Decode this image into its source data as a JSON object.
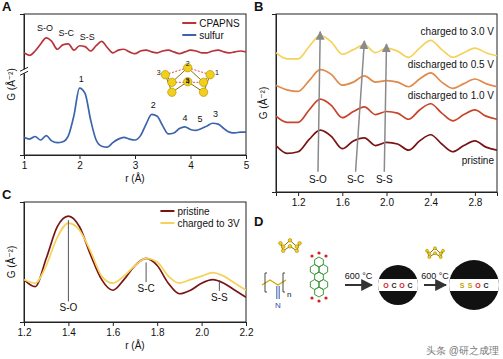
{
  "chart_data": [
    {
      "panel_label": "A",
      "type": "line",
      "xlabel": "r (Å)",
      "ylabel": "G (Å⁻²)",
      "x": [
        1.0,
        1.1,
        1.2,
        1.3,
        1.4,
        1.5,
        1.6,
        1.7,
        1.8,
        1.9,
        2.0,
        2.1,
        2.2,
        2.3,
        2.4,
        2.5,
        2.6,
        2.7,
        2.8,
        2.9,
        3.0,
        3.1,
        3.2,
        3.3,
        3.4,
        3.5,
        3.6,
        3.7,
        3.8,
        3.9,
        4.0,
        4.1,
        4.2,
        4.3,
        4.4,
        4.5,
        4.6,
        4.7,
        4.8,
        4.9,
        5.0
      ],
      "series": [
        {
          "name": "CPAPNS",
          "color": "#b8343a",
          "values": [
            9.6,
            9.3,
            9.8,
            10.6,
            11.3,
            10.9,
            10.0,
            10.5,
            10.6,
            9.9,
            10.4,
            10.3,
            9.8,
            10.4,
            10.9,
            10.2,
            9.6,
            9.9,
            10.0,
            9.7,
            9.5,
            9.8,
            9.9,
            9.7,
            9.6,
            9.8,
            9.9,
            9.7,
            9.5,
            9.7,
            9.9,
            9.8,
            9.6,
            9.6,
            9.8,
            9.9,
            9.7,
            9.6,
            9.7,
            9.8,
            9.7
          ]
        },
        {
          "name": "sulfur",
          "color": "#3b64ad",
          "values": [
            0.0,
            -0.2,
            0.1,
            -0.3,
            0.2,
            -0.4,
            -0.6,
            -0.5,
            0.2,
            2.5,
            5.6,
            5.0,
            2.0,
            -0.3,
            -1.0,
            -1.1,
            -0.6,
            -0.2,
            0.0,
            -0.2,
            -0.3,
            0.2,
            1.5,
            2.6,
            2.4,
            1.3,
            0.4,
            0.5,
            1.0,
            1.2,
            0.9,
            0.8,
            1.0,
            1.3,
            1.6,
            1.5,
            1.0,
            0.6,
            0.5,
            0.6,
            0.6
          ]
        }
      ],
      "xlim": [
        1,
        5
      ],
      "xticks": [
        1,
        2,
        3,
        4,
        5
      ],
      "ylim": [
        -2,
        14
      ],
      "yticks": [],
      "tick_labels": "x",
      "legend": "upper right",
      "annotations": [
        {
          "text": "S-O",
          "x": 1.38,
          "y": 12.1
        },
        {
          "text": "S-C",
          "x": 1.76,
          "y": 11.5
        },
        {
          "text": "S-S",
          "x": 2.14,
          "y": 11.0
        },
        {
          "text": "1",
          "x": 2.03,
          "y": 6.3
        },
        {
          "text": "2",
          "x": 3.33,
          "y": 3.3
        },
        {
          "text": "4",
          "x": 3.9,
          "y": 1.9
        },
        {
          "text": "5",
          "x": 4.17,
          "y": 1.8
        },
        {
          "text": "3",
          "x": 4.45,
          "y": 2.3
        }
      ],
      "inset_labels": [
        "1",
        "2",
        "3",
        "4",
        "5"
      ]
    },
    {
      "panel_label": "B",
      "type": "line",
      "ylabel": "G (Å⁻²)",
      "x": [
        1.0,
        1.1,
        1.2,
        1.3,
        1.4,
        1.5,
        1.6,
        1.7,
        1.8,
        1.9,
        2.0,
        2.1,
        2.2,
        2.3,
        2.4,
        2.5,
        2.6,
        2.7,
        2.8,
        2.9,
        3.0
      ],
      "series": [
        {
          "name": "pristine",
          "color": "#7a1414",
          "values": [
            1.5,
            1.0,
            1.1,
            1.9,
            2.5,
            2.1,
            1.3,
            1.8,
            2.0,
            1.5,
            1.7,
            1.6,
            1.2,
            1.8,
            2.2,
            1.6,
            1.1,
            1.5,
            1.8,
            1.4,
            1.2
          ]
        },
        {
          "name": "discharged to 1.0 V",
          "color": "#c8442a",
          "values": [
            3.4,
            3.0,
            3.0,
            3.8,
            4.5,
            4.1,
            3.3,
            3.7,
            4.0,
            3.5,
            3.7,
            3.6,
            3.2,
            3.8,
            4.2,
            3.6,
            3.1,
            3.5,
            3.8,
            3.4,
            3.2
          ]
        },
        {
          "name": "discharged to 0.5 V",
          "color": "#e08a4c",
          "values": [
            5.4,
            5.1,
            5.0,
            5.7,
            6.4,
            6.1,
            5.4,
            5.6,
            6.0,
            5.6,
            5.7,
            5.6,
            5.3,
            5.8,
            6.2,
            5.6,
            5.2,
            5.5,
            5.8,
            5.5,
            5.3
          ]
        },
        {
          "name": "charged to 3.0 V",
          "color": "#f5d35a",
          "values": [
            7.5,
            7.1,
            7.1,
            7.9,
            8.6,
            8.2,
            7.4,
            7.7,
            8.0,
            7.5,
            7.8,
            7.6,
            7.2,
            7.8,
            8.3,
            7.7,
            7.2,
            7.5,
            7.8,
            7.5,
            7.3
          ]
        }
      ],
      "xlim": [
        1.0,
        3.0
      ],
      "xticks": [
        1.2,
        1.6,
        {
          "value": 2.0,
          "label": "2.0"
        },
        2.4,
        2.8
      ],
      "ylim": [
        -1.5,
        10
      ],
      "yticks": [],
      "tick_labels": "x",
      "annotations": [
        {
          "text": "S-O",
          "x": 1.38,
          "y": -0.9
        },
        {
          "text": "S-C",
          "x": 1.72,
          "y": -0.9
        },
        {
          "text": "S-S",
          "x": 1.98,
          "y": -0.9
        }
      ]
    },
    {
      "panel_label": "C",
      "type": "line",
      "xlabel": "r (Å)",
      "ylabel": "G (Å⁻²)",
      "x": [
        1.2,
        1.25,
        1.3,
        1.35,
        1.4,
        1.45,
        1.5,
        1.55,
        1.6,
        1.65,
        1.7,
        1.75,
        1.8,
        1.85,
        1.9,
        1.95,
        2.0,
        2.05,
        2.1,
        2.15,
        2.2
      ],
      "series": [
        {
          "name": "pristine",
          "color": "#7a1414",
          "values": [
            0.9,
            0.7,
            1.5,
            2.4,
            2.7,
            2.4,
            1.6,
            0.9,
            0.6,
            0.9,
            1.3,
            1.5,
            1.3,
            0.8,
            0.5,
            0.6,
            0.8,
            0.9,
            0.8,
            0.6,
            0.4
          ]
        },
        {
          "name": "charged to 3V",
          "color": "#f5d35a",
          "values": [
            0.9,
            0.8,
            1.3,
            2.1,
            2.5,
            2.3,
            1.7,
            1.0,
            0.8,
            1.0,
            1.3,
            1.5,
            1.4,
            1.0,
            0.8,
            0.9,
            1.0,
            1.1,
            1.0,
            0.8,
            0.6
          ]
        }
      ],
      "xlim": [
        1.2,
        2.2
      ],
      "xticks": [
        1.2,
        1.4,
        1.6,
        1.8,
        {
          "value": 2.0,
          "label": "2.0"
        },
        2.2
      ],
      "ylim": [
        -0.3,
        3.1
      ],
      "yticks": [],
      "tick_labels": "x",
      "legend": "upper right",
      "annotations": [
        {
          "text": "S-O",
          "x": 1.4,
          "y": 0.0
        },
        {
          "text": "S-C",
          "x": 1.75,
          "y": 0.55
        },
        {
          "text": "S-S",
          "x": 2.08,
          "y": 0.3
        }
      ]
    }
  ],
  "diagram": {
    "panel_label": "D",
    "steps": [
      "600 °C",
      "600 °C"
    ],
    "polymer_labels": [
      "n",
      "N"
    ],
    "sphere1_atoms": [
      "O",
      "C",
      "O",
      "C"
    ],
    "sphere2_atoms": [
      "S",
      "S",
      "O",
      "C"
    ]
  },
  "watermark": "头条 @研之成理"
}
